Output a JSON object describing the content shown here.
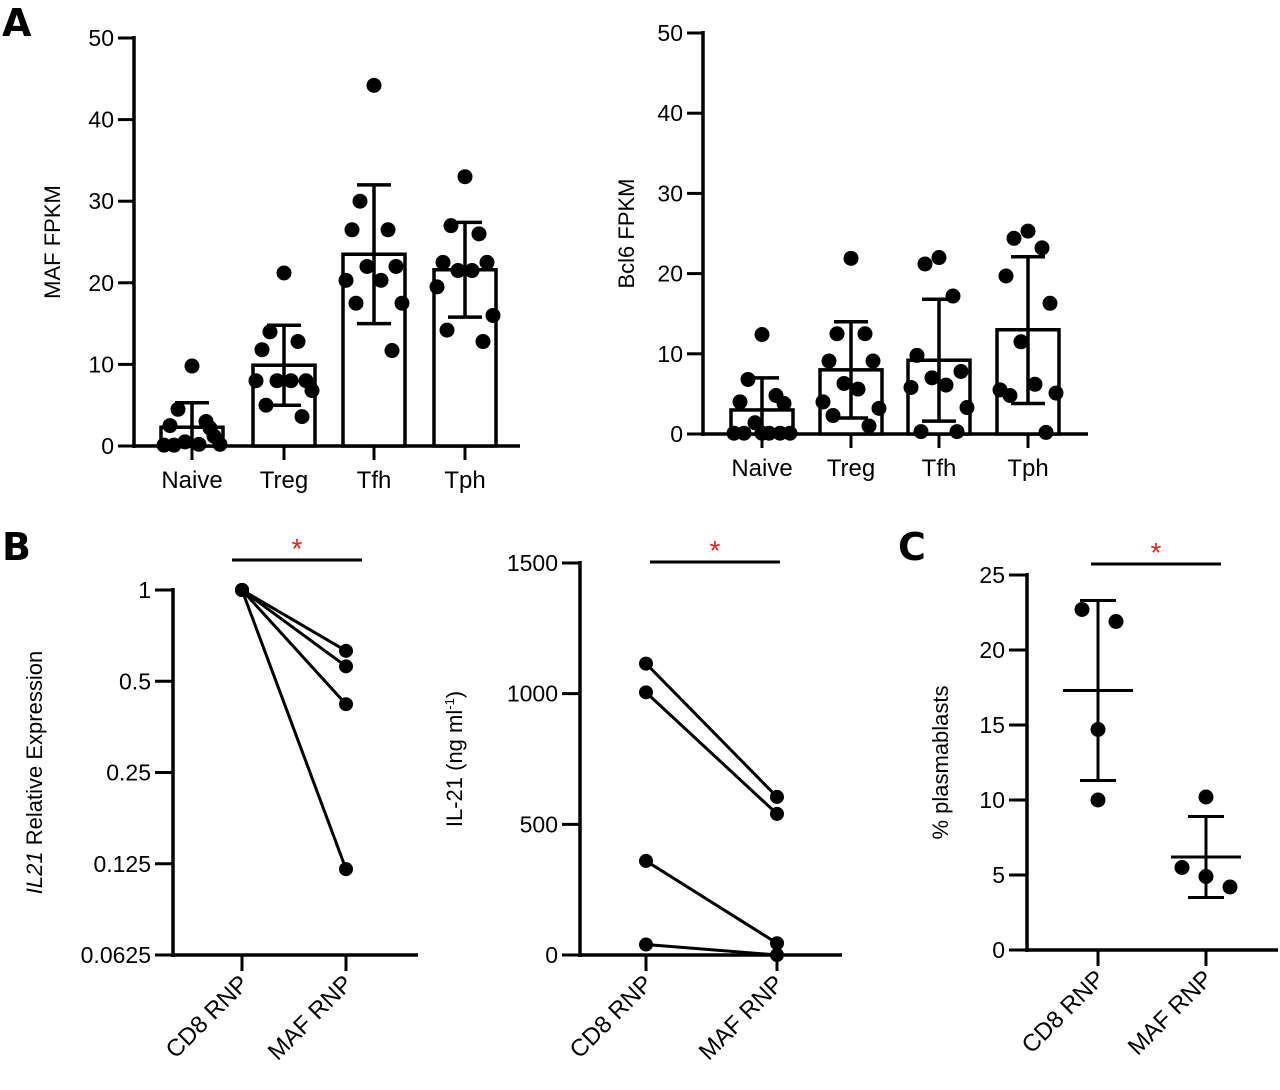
{
  "panels": {
    "A": "A",
    "B": "B",
    "C": "C"
  },
  "significance_mark": "*",
  "colors": {
    "ink": "#000000",
    "significance": "#e8231f",
    "bar_fill": "#ffffff"
  },
  "chart_data": [
    {
      "id": "maf",
      "panel": "A",
      "type": "bar",
      "ylabel": "MAF FPKM",
      "ylim": [
        0,
        50
      ],
      "yticks": [
        0,
        10,
        20,
        30,
        40,
        50
      ],
      "categories": [
        "Naive",
        "Treg",
        "Tfh",
        "Tph"
      ],
      "means": [
        2.3,
        9.9,
        23.5,
        21.6
      ],
      "sd_high": [
        5.3,
        14.8,
        32.0,
        27.4
      ],
      "sd_low": [
        0,
        5.0,
        15.0,
        15.8
      ],
      "points": [
        [
          9.8,
          4.5,
          3.0,
          2.5,
          1.2,
          0.5,
          0.2,
          0.1,
          0.2,
          0.1,
          2.2
        ],
        [
          21.2,
          14.0,
          12.8,
          11.8,
          8.0,
          8.0,
          8.0,
          8.0,
          6.8,
          5.0,
          3.6
        ],
        [
          44.2,
          30.0,
          26.5,
          26.5,
          22.0,
          22.0,
          20.3,
          20.3,
          17.5,
          17.5,
          11.7
        ],
        [
          33.0,
          27.0,
          26.0,
          22.5,
          22.5,
          21.5,
          21.5,
          19.5,
          16.0,
          14.2,
          12.8
        ]
      ]
    },
    {
      "id": "bcl6",
      "panel": "A",
      "type": "bar",
      "ylabel": "Bcl6 FPKM",
      "ylim": [
        0,
        50
      ],
      "yticks": [
        0,
        10,
        20,
        30,
        40,
        50
      ],
      "categories": [
        "Naive",
        "Treg",
        "Tfh",
        "Tph"
      ],
      "means": [
        3.0,
        8.0,
        9.2,
        13.0
      ],
      "sd_high": [
        7.0,
        14.0,
        16.8,
        22.1
      ],
      "sd_low": [
        0,
        2.0,
        1.6,
        3.8
      ],
      "points": [
        [
          12.4,
          6.8,
          4.8,
          4.0,
          3.8,
          1.4,
          0.1,
          0.1,
          0.1,
          0.1,
          0.1,
          0.1
        ],
        [
          21.9,
          12.5,
          12.5,
          9.1,
          9.1,
          6.3,
          5.6,
          4.0,
          3.2,
          2.3,
          1.0
        ],
        [
          22.0,
          21.2,
          17.2,
          9.8,
          7.8,
          7.0,
          6.1,
          5.8,
          3.3,
          0.3,
          0.3
        ],
        [
          25.3,
          24.4,
          23.2,
          19.7,
          16.3,
          11.5,
          6.2,
          5.5,
          5.1,
          4.8,
          0.2
        ]
      ]
    },
    {
      "id": "il21-rel",
      "panel": "B",
      "type": "line",
      "ylabel_italic": "IL21",
      "ylabel_rest": " Relative Expression",
      "yscale": "log2",
      "ylim": [
        0.0625,
        1
      ],
      "yticks": [
        1,
        0.5,
        0.25,
        0.125,
        0.0625
      ],
      "ytick_labels": [
        "1",
        "0.5",
        "0.25",
        "0.125",
        "0.0625"
      ],
      "categories": [
        "CD8 RNP",
        "MAF RNP"
      ],
      "pairs": [
        [
          1,
          0.63
        ],
        [
          1,
          0.56
        ],
        [
          1,
          0.42
        ],
        [
          1,
          0.12
        ]
      ],
      "significance": "*"
    },
    {
      "id": "il21-conc",
      "panel": "B",
      "type": "line",
      "ylabel": "IL-21 (ng ml",
      "ylabel_sup": "-1",
      "ylabel_close": ")",
      "ylim": [
        0,
        1500
      ],
      "yticks": [
        0,
        500,
        1000,
        1500
      ],
      "categories": [
        "CD8 RNP",
        "MAF RNP"
      ],
      "pairs": [
        [
          1115,
          605
        ],
        [
          1005,
          540
        ],
        [
          360,
          45
        ],
        [
          40,
          0
        ]
      ],
      "significance": "*"
    },
    {
      "id": "plasmablasts",
      "panel": "C",
      "type": "scatter",
      "ylabel": "% plasmablasts",
      "ylim": [
        0,
        25
      ],
      "yticks": [
        0,
        5,
        10,
        15,
        20,
        25
      ],
      "categories": [
        "CD8 RNP",
        "MAF RNP"
      ],
      "points": [
        [
          22.7,
          21.9,
          14.7,
          10.0
        ],
        [
          10.2,
          5.5,
          4.9,
          4.2
        ]
      ],
      "means": [
        17.3,
        6.2
      ],
      "sd_high": [
        23.3,
        8.9
      ],
      "sd_low": [
        11.3,
        3.5
      ],
      "significance": "*"
    }
  ]
}
